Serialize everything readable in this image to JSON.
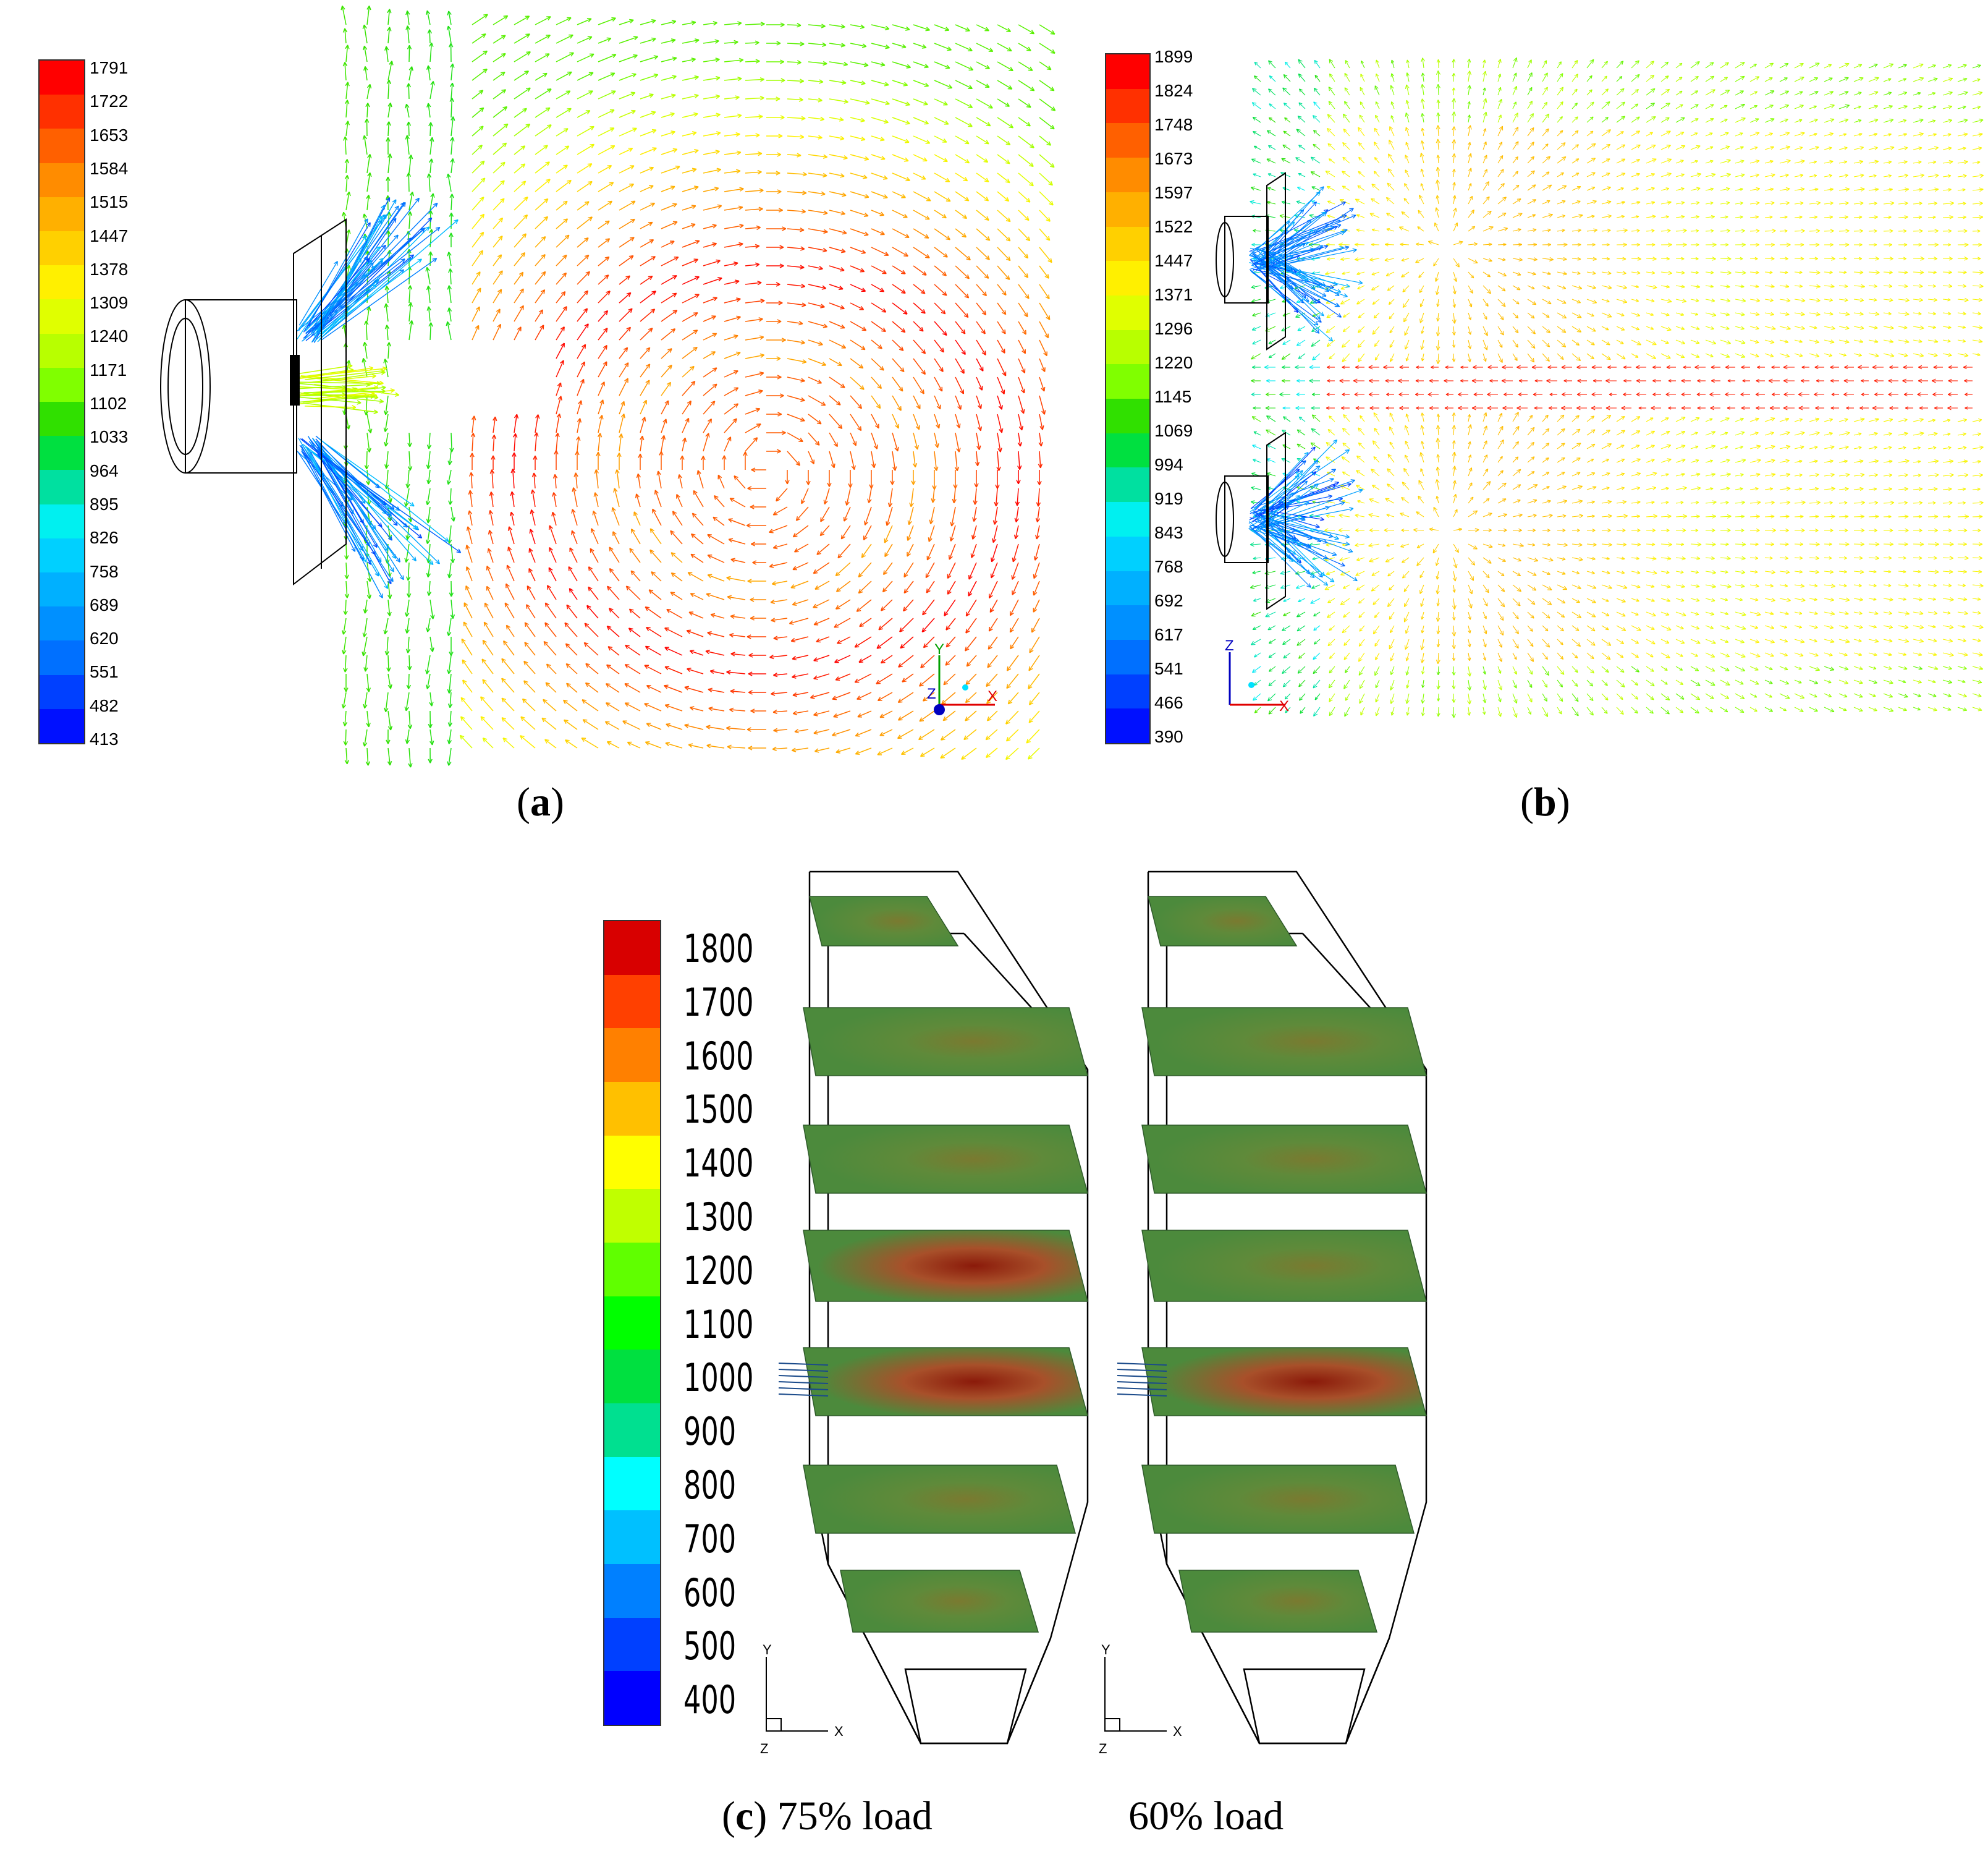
{
  "panels": {
    "a": {
      "colorbar_labels": [
        "1791",
        "1722",
        "1653",
        "1584",
        "1515",
        "1447",
        "1378",
        "1309",
        "1240",
        "1171",
        "1102",
        "1033",
        "964",
        "895",
        "826",
        "758",
        "689",
        "620",
        "551",
        "482",
        "413"
      ],
      "caption_letter": "a",
      "axis_labels": {
        "y": "Y",
        "x": "X",
        "z": "Z"
      }
    },
    "b": {
      "colorbar_labels": [
        "1899",
        "1824",
        "1748",
        "1673",
        "1597",
        "1522",
        "1447",
        "1371",
        "1296",
        "1220",
        "1145",
        "1069",
        "994",
        "919",
        "843",
        "768",
        "692",
        "617",
        "541",
        "466",
        "390"
      ],
      "caption_letter": "b",
      "axis_labels": {
        "y": "Z",
        "x": "X"
      }
    },
    "c": {
      "colorbar_labels": [
        "1800",
        "1700",
        "1600",
        "1500",
        "1400",
        "1300",
        "1200",
        "1100",
        "1000",
        "900",
        "800",
        "700",
        "600",
        "500",
        "400"
      ],
      "caption_letter": "c",
      "caption_left": "75% load",
      "caption_right": "60% load",
      "axis_labels": {
        "y": "Y",
        "x": "X",
        "z": "Z"
      }
    }
  },
  "colors": {
    "scale_a": [
      "#ff0000",
      "#ff3000",
      "#ff6000",
      "#ff8c00",
      "#ffb000",
      "#ffd000",
      "#fff000",
      "#e0ff00",
      "#b8ff00",
      "#80ff00",
      "#30e000",
      "#00e040",
      "#00e0a0",
      "#00f0f0",
      "#00d0ff",
      "#00b0ff",
      "#0090ff",
      "#0070ff",
      "#0040ff",
      "#0010ff"
    ],
    "scale_c": [
      "#d80000",
      "#ff4000",
      "#ff8000",
      "#ffc000",
      "#ffff00",
      "#c0ff00",
      "#60ff00",
      "#00ff00",
      "#00e040",
      "#00e090",
      "#00ffff",
      "#00c0ff",
      "#0080ff",
      "#0040ff",
      "#0000ff"
    ],
    "plane_green": "#4c8a3c",
    "plane_hot": "#8b1a0a",
    "outline": "#000000"
  }
}
